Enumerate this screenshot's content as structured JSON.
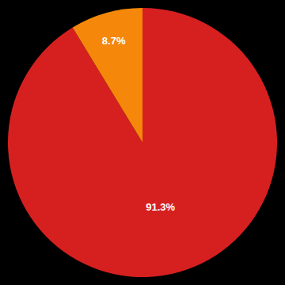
{
  "chart_data": {
    "type": "pie",
    "values": [
      91.3,
      8.7
    ],
    "value_labels": [
      "91.3%",
      "8.7%"
    ],
    "colors": [
      "#d62020",
      "#f5870a"
    ],
    "data_labels": true
  }
}
